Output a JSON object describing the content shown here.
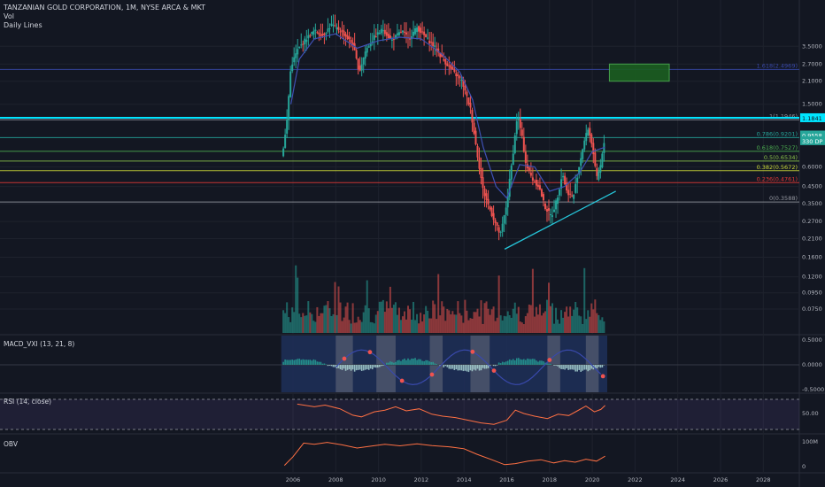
{
  "header": {
    "symbol_line": "TANZANIAN GOLD CORPORATION, 1M, NYSE ARCA & MKT",
    "vol_label": "Vol",
    "study_label": "Daily Lines"
  },
  "panes": {
    "macd_label": "MACD_VXI (13, 21, 8)",
    "rsi_label": "RSI (14, close)",
    "obv_label": "OBV"
  },
  "colors": {
    "background": "#131722",
    "up": "#26a69a",
    "down": "#ef5350",
    "cyan": "#00e5ff",
    "fib_blue": "#3949ab",
    "fib_green": "#8bc34a",
    "fib_red": "#e53935",
    "trend": "#26c6da",
    "obv": "#ff7043",
    "rsi": "#ff7043",
    "macd_band": "#1e2f57"
  },
  "chart_data": {
    "type": "candlestick",
    "scale": "log",
    "price_axis_ticks": [
      "3.5000",
      "2.7000",
      "2.1000",
      "1.5000",
      "0.6000",
      "0.4500",
      "0.3500",
      "0.2700",
      "0.2100",
      "0.1600",
      "0.1200",
      "0.0950",
      "0.0750"
    ],
    "price_tick_values": [
      3.5,
      2.7,
      2.1,
      1.5,
      0.6,
      0.45,
      0.35,
      0.27,
      0.21,
      0.16,
      0.12,
      0.095,
      0.075
    ],
    "time_axis_ticks": [
      "2006",
      "2008",
      "2010",
      "2012",
      "2014",
      "2016",
      "2018",
      "2020",
      "2022",
      "2024",
      "2026",
      "2028"
    ],
    "time_tick_years": [
      2006,
      2008,
      2010,
      2012,
      2014,
      2016,
      2018,
      2020,
      2022,
      2024,
      2026,
      2028
    ],
    "fib_levels": [
      {
        "label": "1.618(2.4969)",
        "price": 2.4969,
        "color": "#3949ab"
      },
      {
        "label": "1(1.1946)",
        "price": 1.1946,
        "color": "#9598a1"
      },
      {
        "label": "0.786(0.9201)",
        "price": 0.9201,
        "color": "#26a69a"
      },
      {
        "label": "0.618(0.7527)",
        "price": 0.7527,
        "color": "#4caf50"
      },
      {
        "label": "0.5(0.6534)",
        "price": 0.6534,
        "color": "#8bc34a"
      },
      {
        "label": "0.382(0.5672)",
        "price": 0.5672,
        "color": "#cddc39"
      },
      {
        "label": "0.236(0.4761)",
        "price": 0.4761,
        "color": "#e53935"
      },
      {
        "label": "0(0.3588)",
        "price": 0.3588,
        "color": "#9598a1"
      }
    ],
    "horizontal_line": {
      "price": 1.1841,
      "label": "1.1841",
      "color": "#00e5ff"
    },
    "price_badges": [
      {
        "label": "0.9558",
        "price": 0.9558,
        "color": "#26a69a"
      },
      {
        "label": "330 DP",
        "price": 0.88,
        "color": "#26a69a"
      }
    ],
    "target_box": {
      "x_from": 2020.8,
      "x_to": 2023.6,
      "price_from": 2.1,
      "price_to": 2.7
    },
    "trendline": {
      "from": {
        "x": 2015.9,
        "price": 0.18
      },
      "to": {
        "x": 2021.1,
        "price": 0.42
      }
    },
    "price_path": [
      {
        "t": 2005.5,
        "p": 0.72
      },
      {
        "t": 2005.7,
        "p": 1.1
      },
      {
        "t": 2005.9,
        "p": 2.6
      },
      {
        "t": 2006.2,
        "p": 3.3
      },
      {
        "t": 2006.6,
        "p": 3.9
      },
      {
        "t": 2007.0,
        "p": 4.4
      },
      {
        "t": 2007.4,
        "p": 4.1
      },
      {
        "t": 2007.8,
        "p": 4.8
      },
      {
        "t": 2008.3,
        "p": 4.3
      },
      {
        "t": 2008.8,
        "p": 3.6
      },
      {
        "t": 2009.1,
        "p": 2.4
      },
      {
        "t": 2009.4,
        "p": 3.3
      },
      {
        "t": 2009.8,
        "p": 4.0
      },
      {
        "t": 2010.2,
        "p": 4.5
      },
      {
        "t": 2010.6,
        "p": 3.8
      },
      {
        "t": 2011.1,
        "p": 4.4
      },
      {
        "t": 2011.4,
        "p": 3.9
      },
      {
        "t": 2011.8,
        "p": 4.6
      },
      {
        "t": 2012.2,
        "p": 4.0
      },
      {
        "t": 2012.6,
        "p": 3.5
      },
      {
        "t": 2013.0,
        "p": 2.9
      },
      {
        "t": 2013.5,
        "p": 2.4
      },
      {
        "t": 2013.9,
        "p": 2.1
      },
      {
        "t": 2014.3,
        "p": 1.4
      },
      {
        "t": 2014.6,
        "p": 0.75
      },
      {
        "t": 2014.9,
        "p": 0.42
      },
      {
        "t": 2015.3,
        "p": 0.3
      },
      {
        "t": 2015.7,
        "p": 0.22
      },
      {
        "t": 2016.0,
        "p": 0.35
      },
      {
        "t": 2016.3,
        "p": 0.75
      },
      {
        "t": 2016.5,
        "p": 1.3
      },
      {
        "t": 2016.7,
        "p": 0.95
      },
      {
        "t": 2016.9,
        "p": 0.62
      },
      {
        "t": 2017.2,
        "p": 0.5
      },
      {
        "t": 2017.5,
        "p": 0.45
      },
      {
        "t": 2017.8,
        "p": 0.33
      },
      {
        "t": 2018.1,
        "p": 0.29
      },
      {
        "t": 2018.4,
        "p": 0.4
      },
      {
        "t": 2018.6,
        "p": 0.55
      },
      {
        "t": 2018.8,
        "p": 0.42
      },
      {
        "t": 2019.1,
        "p": 0.38
      },
      {
        "t": 2019.4,
        "p": 0.62
      },
      {
        "t": 2019.6,
        "p": 0.85
      },
      {
        "t": 2019.8,
        "p": 1.05
      },
      {
        "t": 2020.0,
        "p": 0.82
      },
      {
        "t": 2020.2,
        "p": 0.5
      },
      {
        "t": 2020.4,
        "p": 0.62
      },
      {
        "t": 2020.6,
        "p": 0.95
      }
    ],
    "ema_path": [
      {
        "t": 2005.9,
        "p": 1.5
      },
      {
        "t": 2006.3,
        "p": 2.9
      },
      {
        "t": 2007.0,
        "p": 3.9
      },
      {
        "t": 2008.0,
        "p": 4.2
      },
      {
        "t": 2009.0,
        "p": 3.4
      },
      {
        "t": 2010.0,
        "p": 3.8
      },
      {
        "t": 2011.0,
        "p": 4.0
      },
      {
        "t": 2012.0,
        "p": 3.9
      },
      {
        "t": 2013.0,
        "p": 3.1
      },
      {
        "t": 2013.8,
        "p": 2.4
      },
      {
        "t": 2014.4,
        "p": 1.6
      },
      {
        "t": 2014.9,
        "p": 0.8
      },
      {
        "t": 2015.5,
        "p": 0.45
      },
      {
        "t": 2016.0,
        "p": 0.38
      },
      {
        "t": 2016.6,
        "p": 0.62
      },
      {
        "t": 2017.3,
        "p": 0.6
      },
      {
        "t": 2018.0,
        "p": 0.42
      },
      {
        "t": 2018.7,
        "p": 0.45
      },
      {
        "t": 2019.4,
        "p": 0.55
      },
      {
        "t": 2020.0,
        "p": 0.75
      },
      {
        "t": 2020.6,
        "p": 0.8
      }
    ],
    "macd_ticks": [
      "0.5000",
      "0.0000",
      "-0.5000"
    ],
    "macd_tick_values": [
      0.5,
      0.0,
      -0.5
    ],
    "rsi_ticks": [
      "50.00"
    ],
    "rsi_tick_values": [
      50
    ],
    "rsi_path": [
      {
        "t": 2006.2,
        "v": 78
      },
      {
        "t": 2007.0,
        "v": 70
      },
      {
        "t": 2007.5,
        "v": 75
      },
      {
        "t": 2008.2,
        "v": 64
      },
      {
        "t": 2008.8,
        "v": 45
      },
      {
        "t": 2009.2,
        "v": 40
      },
      {
        "t": 2009.8,
        "v": 55
      },
      {
        "t": 2010.3,
        "v": 60
      },
      {
        "t": 2010.8,
        "v": 70
      },
      {
        "t": 2011.3,
        "v": 58
      },
      {
        "t": 2011.9,
        "v": 64
      },
      {
        "t": 2012.5,
        "v": 48
      },
      {
        "t": 2013.0,
        "v": 42
      },
      {
        "t": 2013.6,
        "v": 38
      },
      {
        "t": 2014.2,
        "v": 30
      },
      {
        "t": 2014.8,
        "v": 22
      },
      {
        "t": 2015.4,
        "v": 18
      },
      {
        "t": 2016.0,
        "v": 30
      },
      {
        "t": 2016.4,
        "v": 60
      },
      {
        "t": 2016.8,
        "v": 50
      },
      {
        "t": 2017.3,
        "v": 42
      },
      {
        "t": 2017.9,
        "v": 35
      },
      {
        "t": 2018.4,
        "v": 48
      },
      {
        "t": 2018.9,
        "v": 44
      },
      {
        "t": 2019.3,
        "v": 58
      },
      {
        "t": 2019.7,
        "v": 72
      },
      {
        "t": 2020.1,
        "v": 55
      },
      {
        "t": 2020.4,
        "v": 62
      },
      {
        "t": 2020.6,
        "v": 74
      }
    ],
    "obv_ticks": [
      "100M",
      "0"
    ],
    "obv_tick_values": [
      100,
      0
    ],
    "obv_path": [
      {
        "t": 2005.6,
        "v": 5
      },
      {
        "t": 2006.0,
        "v": 40
      },
      {
        "t": 2006.5,
        "v": 95
      },
      {
        "t": 2007.0,
        "v": 90
      },
      {
        "t": 2007.6,
        "v": 98
      },
      {
        "t": 2008.3,
        "v": 88
      },
      {
        "t": 2009.0,
        "v": 75
      },
      {
        "t": 2009.6,
        "v": 82
      },
      {
        "t": 2010.3,
        "v": 90
      },
      {
        "t": 2011.0,
        "v": 84
      },
      {
        "t": 2011.8,
        "v": 92
      },
      {
        "t": 2012.5,
        "v": 85
      },
      {
        "t": 2013.3,
        "v": 80
      },
      {
        "t": 2014.0,
        "v": 72
      },
      {
        "t": 2014.6,
        "v": 50
      },
      {
        "t": 2015.3,
        "v": 28
      },
      {
        "t": 2015.9,
        "v": 8
      },
      {
        "t": 2016.4,
        "v": 12
      },
      {
        "t": 2017.0,
        "v": 22
      },
      {
        "t": 2017.6,
        "v": 28
      },
      {
        "t": 2018.2,
        "v": 15
      },
      {
        "t": 2018.7,
        "v": 24
      },
      {
        "t": 2019.2,
        "v": 18
      },
      {
        "t": 2019.7,
        "v": 30
      },
      {
        "t": 2020.2,
        "v": 22
      },
      {
        "t": 2020.6,
        "v": 42
      }
    ]
  }
}
